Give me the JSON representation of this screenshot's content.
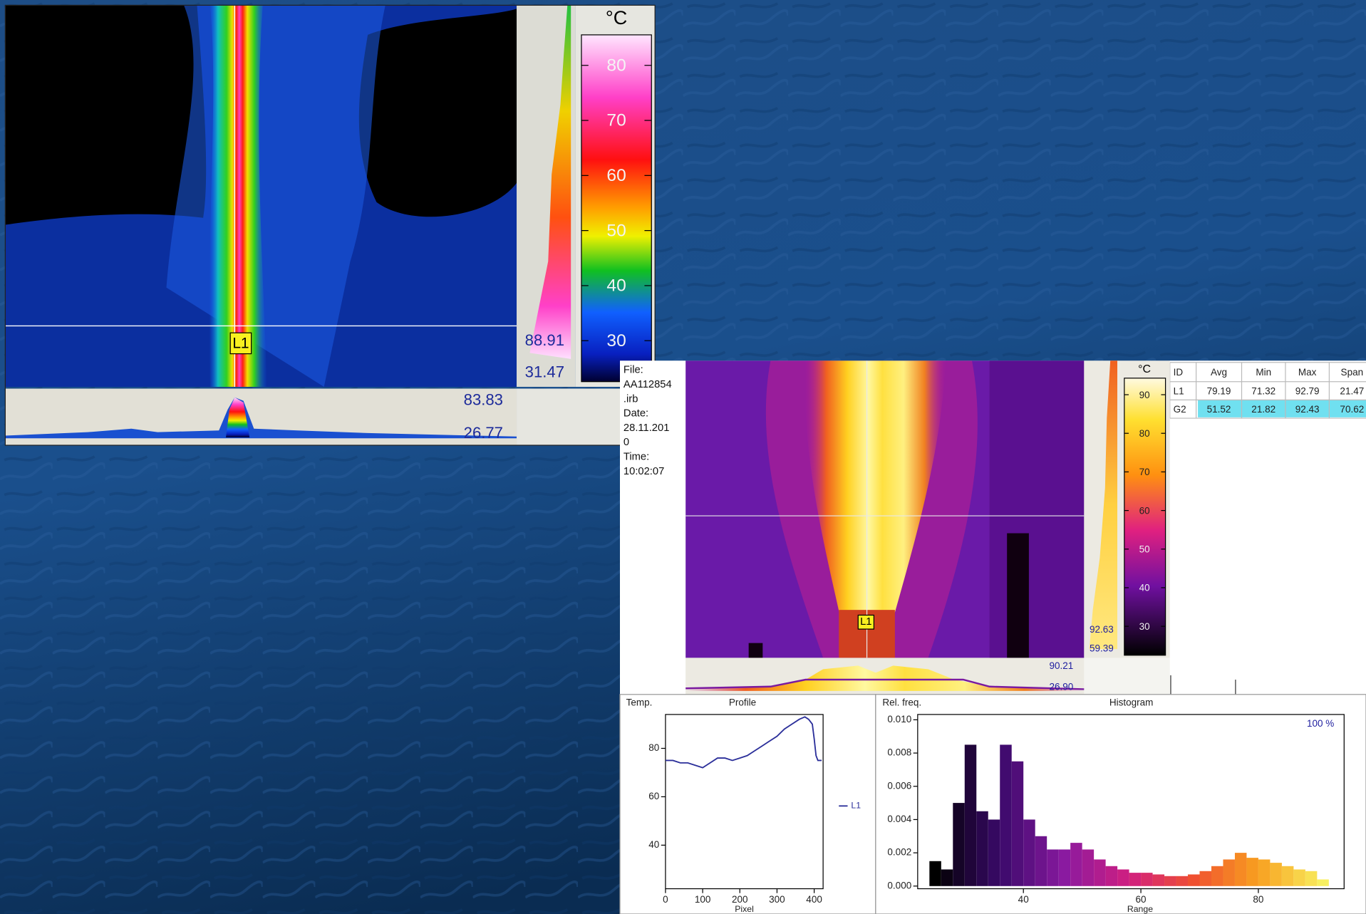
{
  "left_view": {
    "marker": "L1",
    "colorbar": {
      "unit": "°C",
      "ticks": [
        "80",
        "70",
        "60",
        "50",
        "40",
        "30"
      ]
    },
    "vertical_max": "88.91",
    "vertical_min": "31.47",
    "horizontal_max": "83.83",
    "horizontal_min": "26.77"
  },
  "right_view": {
    "info": [
      "File:",
      "AA112854",
      ".irb",
      "Date:",
      "28.11.201",
      "0",
      "Time:",
      "10:02:07"
    ],
    "marker": "L1",
    "colorbar": {
      "unit": "°C",
      "ticks": [
        "90",
        "80",
        "70",
        "60",
        "50",
        "40",
        "30"
      ]
    },
    "vertical_max": "92.63",
    "vertical_min": "59.39",
    "horizontal_max": "90.21",
    "horizontal_min": "26.90",
    "table": {
      "header": [
        "ID",
        "Avg",
        "Min",
        "Max",
        "Span"
      ],
      "rows": [
        [
          "L1",
          "79.19",
          "71.32",
          "92.79",
          "21.47"
        ],
        [
          "G2",
          "51.52",
          "21.82",
          "92.43",
          "70.62"
        ]
      ]
    }
  },
  "chart_data": [
    {
      "type": "line",
      "y_label": "Temp.",
      "title": "Profile",
      "x_label": "Pixel",
      "x": [
        0,
        20,
        40,
        60,
        80,
        100,
        120,
        140,
        160,
        180,
        200,
        220,
        240,
        260,
        280,
        300,
        320,
        340,
        360,
        375,
        385,
        395,
        400,
        405,
        410,
        420
      ],
      "series": [
        {
          "name": "L1",
          "color": "#2b2f9a",
          "values": [
            75,
            75,
            74,
            74,
            73,
            72,
            74,
            76,
            76,
            75,
            76,
            77,
            79,
            81,
            83,
            85,
            88,
            90,
            92,
            93,
            92,
            90,
            84,
            77,
            75,
            75
          ]
        }
      ],
      "xlim": [
        0,
        424
      ],
      "ylim": [
        22,
        94
      ],
      "xticks": [
        0,
        100,
        200,
        300,
        400
      ],
      "yticks": [
        40,
        60,
        80
      ]
    },
    {
      "type": "histogram",
      "y_label": "Rel. freq.",
      "title": "Histogram",
      "x_label": "Range",
      "annotation": "100 %",
      "bins": [
        24,
        26,
        28,
        30,
        32,
        34,
        36,
        38,
        40,
        42,
        44,
        46,
        48,
        50,
        52,
        54,
        56,
        58,
        60,
        62,
        64,
        66,
        68,
        70,
        72,
        74,
        76,
        78,
        80,
        82,
        84,
        86,
        88,
        90,
        92
      ],
      "values": [
        0.0015,
        0.001,
        0.005,
        0.0085,
        0.0045,
        0.004,
        0.0085,
        0.0075,
        0.004,
        0.003,
        0.0022,
        0.0022,
        0.0026,
        0.0022,
        0.0016,
        0.0012,
        0.001,
        0.0008,
        0.0008,
        0.0007,
        0.0006,
        0.0006,
        0.0007,
        0.0009,
        0.0012,
        0.0016,
        0.002,
        0.0017,
        0.0016,
        0.0014,
        0.0012,
        0.001,
        0.0009,
        0.0004
      ],
      "xlim": [
        22,
        94.6
      ],
      "ylim": [
        -0.00016,
        0.01032
      ],
      "xticks": [
        40,
        60,
        80
      ],
      "yticks": [
        {
          "value": 0,
          "label": "0.000"
        },
        {
          "value": 0.002,
          "label": "0.002"
        },
        {
          "value": 0.004,
          "label": "0.004"
        },
        {
          "value": 0.006,
          "label": "0.006"
        },
        {
          "value": 0.008,
          "label": "0.008"
        },
        {
          "value": 0.01,
          "label": "0.010"
        }
      ]
    }
  ]
}
